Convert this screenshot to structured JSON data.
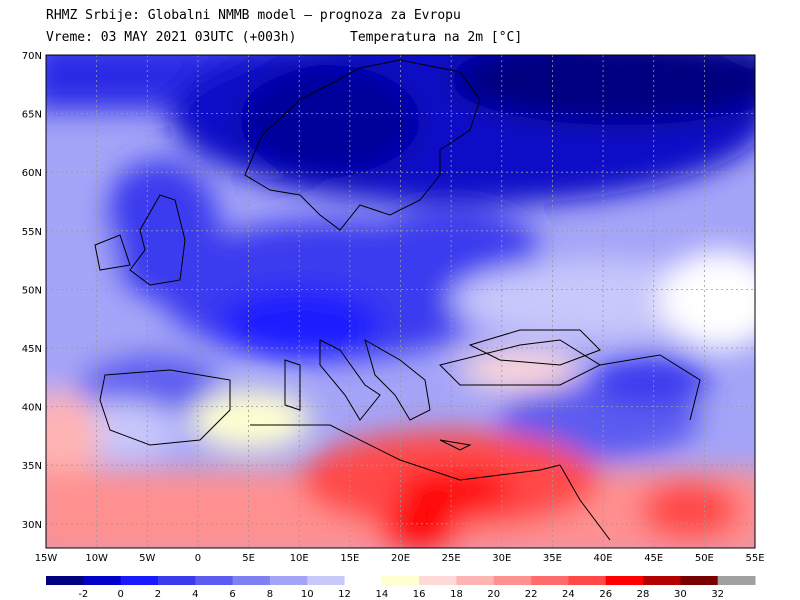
{
  "header": {
    "line1": "RHMZ Srbije: Globalni NMMB model — prognoza za Evropu",
    "line2_left": "Vreme: 03 MAY 2021 03UTC (+003h)",
    "line2_right": "Temperatura na 2m [°C]"
  },
  "lat_labels": [
    "70N",
    "65N",
    "60N",
    "55N",
    "50N",
    "45N",
    "40N",
    "35N",
    "30N"
  ],
  "lon_labels": [
    "15W",
    "10W",
    "5W",
    "0",
    "5E",
    "10E",
    "15E",
    "20E",
    "25E",
    "30E",
    "35E",
    "40E",
    "45E",
    "50E",
    "55E"
  ],
  "legend": {
    "labels": [
      "-2",
      "0",
      "2",
      "4",
      "6",
      "8",
      "10",
      "12",
      "14",
      "16",
      "18",
      "20",
      "22",
      "24",
      "26",
      "28",
      "30",
      "32"
    ],
    "colors": [
      "#000080",
      "#0000c8",
      "#1a1aff",
      "#3a3aef",
      "#5c5cf0",
      "#8080f5",
      "#a4a4f8",
      "#c8c8fb",
      "#ffffff",
      "#ffffd0",
      "#ffd8d8",
      "#ffb4b4",
      "#ff9090",
      "#ff6c6c",
      "#ff4848",
      "#ff0000",
      "#b40000",
      "#780000",
      "#a0a0a0"
    ]
  }
}
